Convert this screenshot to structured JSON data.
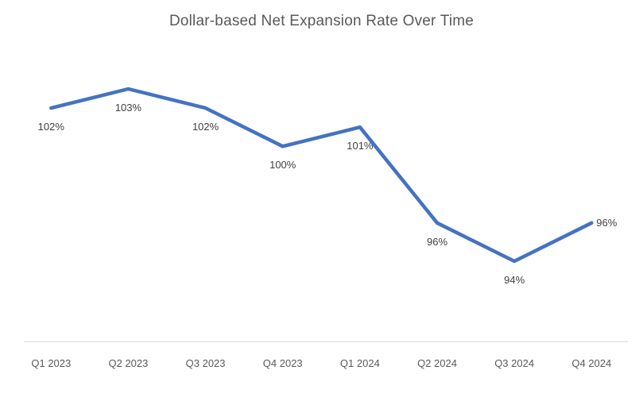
{
  "chart_data": {
    "type": "line",
    "title": "Dollar-based Net Expansion Rate Over Time",
    "categories": [
      "Q1 2023",
      "Q2 2023",
      "Q3 2023",
      "Q4 2023",
      "Q1 2024",
      "Q2 2024",
      "Q3 2024",
      "Q4 2024"
    ],
    "series": [
      {
        "name": "Dollar-based Net Expansion Rate",
        "values": [
          102,
          103,
          102,
          100,
          101,
          96,
          94,
          96
        ],
        "data_labels": [
          "102%",
          "103%",
          "102%",
          "100%",
          "101%",
          "96%",
          "94%",
          "96%"
        ]
      }
    ],
    "xlabel": "",
    "ylabel": "",
    "ylim": [
      90,
      104
    ],
    "grid": false,
    "legend_position": "none",
    "label_positions": [
      "below",
      "below",
      "below",
      "below",
      "below",
      "below",
      "below",
      "right"
    ],
    "colors": {
      "line": "#4472C4",
      "title": "#595959",
      "axis_labels": "#595959",
      "data_labels": "#404040",
      "axis_line": "#D9D9D9"
    }
  }
}
